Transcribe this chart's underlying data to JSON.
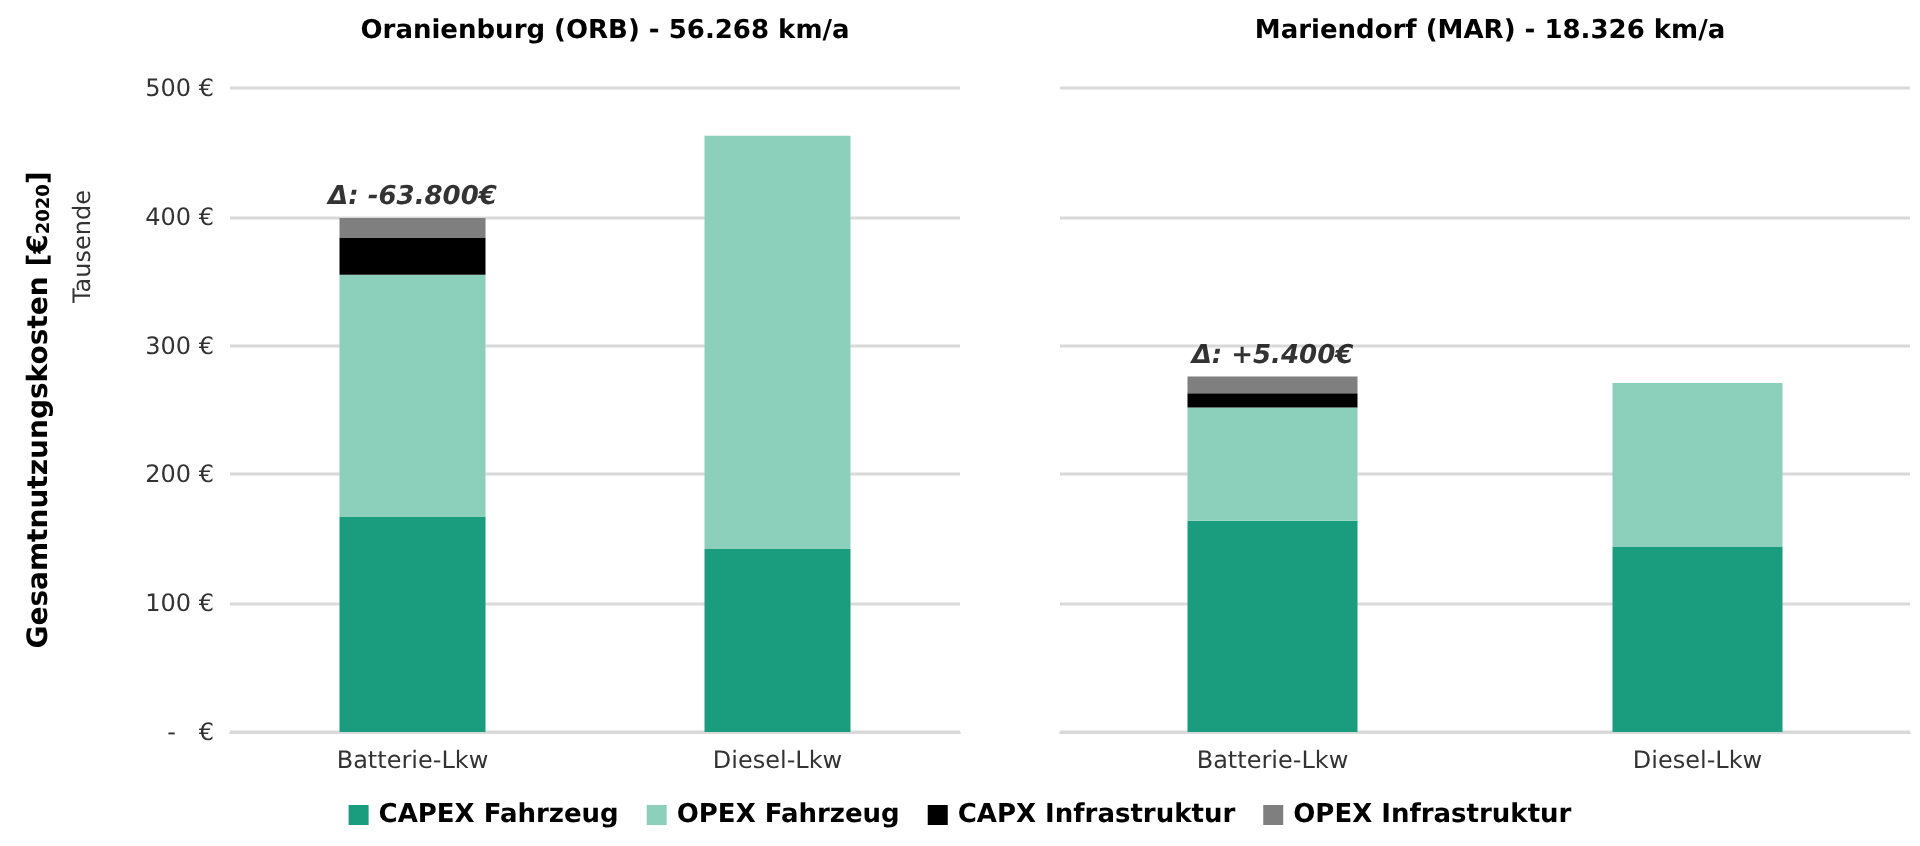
{
  "chart_data": [
    {
      "type": "bar",
      "title": "Oranienburg (ORB) - 56.268 km/a",
      "ylabel": "Gesamtnutzungskosten [€$_{2020}$]",
      "stacked": true,
      "grid": "y",
      "legend": "bottom",
      "categories": [
        "Batterie-Lkw",
        "Diesel-Lkw"
      ],
      "series": [
        {
          "name": "CAPEX Fahrzeug",
          "color": "#1a9c7e",
          "values": [
            167,
            142
          ]
        },
        {
          "name": "OPEX Fahrzeug",
          "color": "#8ccfbb",
          "values": [
            188,
            321
          ]
        },
        {
          "name": "CAPX Infrastruktur",
          "color": "#000000",
          "values": [
            29,
            null
          ]
        },
        {
          "name": "OPEX Infrastruktur",
          "color": "#7f7f7f",
          "values": [
            15,
            null
          ]
        }
      ],
      "ylim": [
        0,
        500
      ],
      "yticks": [
        {
          "value": 0,
          "label": "-   €"
        },
        {
          "value": 100,
          "label": "100 €"
        },
        {
          "value": 200,
          "label": "200 €"
        },
        {
          "value": 300,
          "label": "300 €"
        },
        {
          "value": 400,
          "label": "400 €"
        },
        {
          "value": 500,
          "label": "500 €"
        }
      ],
      "annotations": [
        "Tausende",
        {
          "text": "Δ: -63.800€",
          "x": "Batterie-Lkw",
          "y": 399
        }
      ]
    },
    {
      "type": "bar",
      "title": "Mariendorf (MAR) - 18.326 km/a",
      "stacked": true,
      "grid": "y",
      "tick_labels": "x",
      "categories": [
        "Batterie-Lkw",
        "Diesel-Lkw"
      ],
      "series": [
        {
          "color": "#1a9c7e",
          "values": [
            164,
            144
          ]
        },
        {
          "color": "#8ccfbb",
          "values": [
            88,
            127
          ]
        },
        {
          "color": "#000000",
          "values": [
            11,
            null
          ]
        },
        {
          "color": "#7f7f7f",
          "values": [
            13,
            null
          ]
        }
      ],
      "ylim": [
        0,
        500
      ],
      "yticks": [
        0,
        100,
        200,
        300,
        400,
        500
      ],
      "annotations": [
        {
          "text": "Δ: +5.400€",
          "x": "Batterie-Lkw",
          "y": 276
        }
      ]
    }
  ]
}
